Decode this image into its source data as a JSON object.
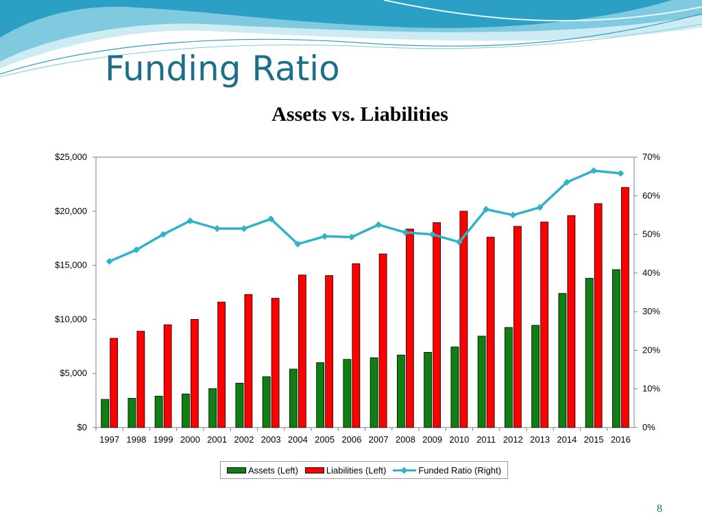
{
  "slide": {
    "title": "Funding Ratio",
    "page_number": "8",
    "accent_color": "#1c6f8a"
  },
  "chart_data": {
    "type": "bar",
    "title": "Assets vs. Liabilities",
    "categories": [
      "1997",
      "1998",
      "1999",
      "2000",
      "2001",
      "2002",
      "2003",
      "2004",
      "2005",
      "2006",
      "2007",
      "2008",
      "2009",
      "2010",
      "2011",
      "2012",
      "2013",
      "2014",
      "2015",
      "2016"
    ],
    "series": [
      {
        "name": "Assets (Left)",
        "type": "bar",
        "axis": "left",
        "color": "#0f7f12",
        "values": [
          2600,
          2700,
          2900,
          3100,
          3600,
          4100,
          4700,
          5400,
          6000,
          6300,
          6450,
          6700,
          6950,
          7450,
          8450,
          9250,
          9450,
          12400,
          13800,
          14600
        ]
      },
      {
        "name": "Liabilities (Left)",
        "type": "bar",
        "axis": "left",
        "color": "#ff0000",
        "values": [
          8250,
          8900,
          9500,
          10000,
          11600,
          12300,
          11950,
          14100,
          14050,
          15150,
          16050,
          18350,
          18950,
          20000,
          17600,
          18600,
          19000,
          19600,
          20700,
          22200
        ]
      },
      {
        "name": "Funded Ratio (Right)",
        "type": "line",
        "axis": "right",
        "color": "#31b2c8",
        "values": [
          43,
          46,
          50,
          53.5,
          51.5,
          51.5,
          54,
          47.5,
          49.5,
          49.3,
          52.5,
          50.5,
          50,
          48,
          56.5,
          55,
          57,
          63.5,
          66.5,
          65.8
        ]
      }
    ],
    "y_left": {
      "min": 0,
      "max": 25000,
      "ticks": [
        "$0",
        "$5,000",
        "$10,000",
        "$15,000",
        "$20,000",
        "$25,000"
      ]
    },
    "y_right": {
      "min": 0,
      "max": 70,
      "ticks": [
        "0%",
        "10%",
        "20%",
        "30%",
        "40%",
        "50%",
        "60%",
        "70%"
      ]
    },
    "grid": false,
    "legend": "bottom"
  }
}
